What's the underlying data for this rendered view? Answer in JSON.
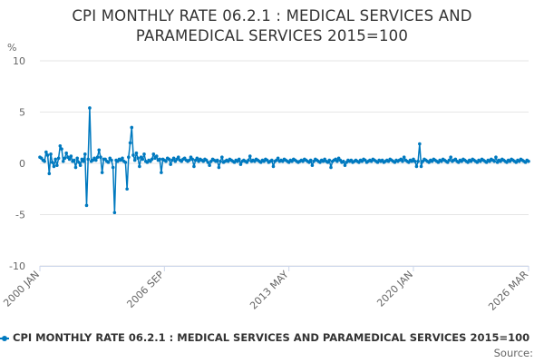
{
  "chart_data": {
    "type": "line",
    "title_lines": [
      "CPI MONTHLY RATE 06.2.1 : MEDICAL SERVICES AND",
      "PARAMEDICAL SERVICES 2015=100"
    ],
    "ylabel": "%",
    "ylim": [
      -10,
      10
    ],
    "yticks": [
      10,
      5,
      0,
      -5,
      -10
    ],
    "x_tick_labels": [
      "2000 JAN",
      "2006 SEP",
      "2013 MAY",
      "2020 JAN",
      "2026 MAR"
    ],
    "x_tick_index": [
      0,
      80,
      160,
      240,
      314
    ],
    "legend_label": "CPI MONTHLY RATE 06.2.1 : MEDICAL SERVICES AND PARAMEDICAL SERVICES 2015=100",
    "source_label": "Source:",
    "color": "#0079bf",
    "series": [
      {
        "name": "CPI MONTHLY RATE 06.2.1 : MEDICAL SERVICES AND PARAMEDICAL SERVICES 2015=100",
        "start": "2000 JAN",
        "values": [
          0.6,
          0.5,
          0.3,
          0.2,
          1.1,
          0.8,
          -1.0,
          0.9,
          0.1,
          -0.3,
          0.4,
          -0.2,
          0.5,
          1.7,
          1.4,
          0.2,
          0.5,
          1.0,
          0.6,
          0.4,
          0.7,
          0.2,
          0.3,
          -0.4,
          0.5,
          0.1,
          -0.2,
          0.4,
          0.2,
          0.9,
          -4.1,
          0.4,
          5.4,
          0.2,
          0.3,
          0.5,
          0.3,
          0.6,
          1.3,
          0.6,
          -0.9,
          0.4,
          0.4,
          0.2,
          0.1,
          0.5,
          0.3,
          -0.4,
          -4.8,
          0.3,
          0.2,
          0.4,
          0.3,
          0.5,
          0.2,
          0.1,
          -2.5,
          0.6,
          2.0,
          3.5,
          0.8,
          0.3,
          1.0,
          0.5,
          -0.3,
          0.6,
          0.4,
          0.9,
          0.2,
          0.1,
          0.3,
          0.2,
          0.4,
          0.9,
          0.5,
          0.7,
          0.3,
          0.4,
          -0.9,
          0.4,
          0.3,
          0.2,
          0.5,
          0.4,
          -0.1,
          0.3,
          0.5,
          0.2,
          0.4,
          0.6,
          0.3,
          0.2,
          0.4,
          0.5,
          0.3,
          0.2,
          0.3,
          0.6,
          0.4,
          -0.3,
          0.3,
          0.5,
          0.2,
          0.4,
          0.3,
          0.2,
          0.4,
          0.3,
          0.1,
          -0.2,
          0.2,
          0.4,
          0.3,
          0.2,
          0.3,
          -0.4,
          0.2,
          0.6,
          0.1,
          0.2,
          0.3,
          0.2,
          0.4,
          0.3,
          0.2,
          0.1,
          0.3,
          0.2,
          0.4,
          -0.1,
          0.2,
          0.3,
          0.2,
          0.1,
          0.3,
          0.7,
          0.2,
          0.3,
          0.2,
          0.4,
          0.3,
          0.2,
          0.1,
          0.3,
          0.2,
          0.4,
          0.3,
          0.1,
          0.2,
          0.3,
          -0.3,
          0.2,
          0.3,
          0.5,
          0.2,
          0.3,
          0.2,
          0.4,
          0.3,
          0.2,
          0.1,
          0.3,
          0.2,
          0.4,
          0.3,
          0.2,
          0.1,
          0.2,
          0.3,
          0.2,
          0.4,
          0.3,
          0.2,
          0.1,
          0.3,
          -0.2,
          0.2,
          0.4,
          0.3,
          0.2,
          0.1,
          0.3,
          0.2,
          0.4,
          0.2,
          0.1,
          0.3,
          -0.4,
          0.2,
          0.3,
          0.4,
          0.2,
          0.5,
          0.3,
          0.1,
          0.2,
          -0.2,
          0.1,
          0.3,
          0.2,
          0.3,
          0.1,
          0.2,
          0.3,
          0.2,
          0.1,
          0.3,
          0.2,
          0.4,
          0.3,
          0.1,
          0.2,
          0.3,
          0.2,
          0.4,
          0.3,
          0.2,
          0.1,
          0.3,
          0.2,
          0.3,
          0.1,
          0.2,
          0.3,
          0.2,
          0.4,
          0.3,
          0.2,
          0.1,
          0.3,
          0.2,
          0.3,
          0.4,
          0.2,
          0.6,
          0.3,
          0.2,
          0.1,
          0.3,
          0.2,
          0.4,
          0.2,
          -0.3,
          0.2,
          1.9,
          -0.3,
          0.2,
          0.4,
          0.3,
          0.2,
          0.1,
          0.3,
          0.2,
          0.4,
          0.3,
          0.2,
          0.1,
          0.3,
          0.2,
          0.4,
          0.3,
          0.2,
          0.1,
          0.3,
          0.6,
          0.2,
          0.3,
          0.4,
          0.2,
          0.1,
          0.3,
          0.2,
          0.4,
          0.3,
          0.2,
          0.1,
          0.3,
          0.2,
          0.4,
          0.3,
          0.2,
          0.1,
          0.3,
          0.2,
          0.4,
          0.3,
          0.2,
          0.1,
          0.3,
          0.2,
          0.4,
          0.3,
          0.2,
          0.6,
          0.1,
          0.3,
          0.2,
          0.4,
          0.3,
          0.2,
          0.1,
          0.3,
          0.2,
          0.4,
          0.3,
          0.2,
          0.1,
          0.3,
          0.2,
          0.4,
          0.3,
          0.2,
          0.1,
          0.3,
          0.2
        ]
      }
    ]
  }
}
